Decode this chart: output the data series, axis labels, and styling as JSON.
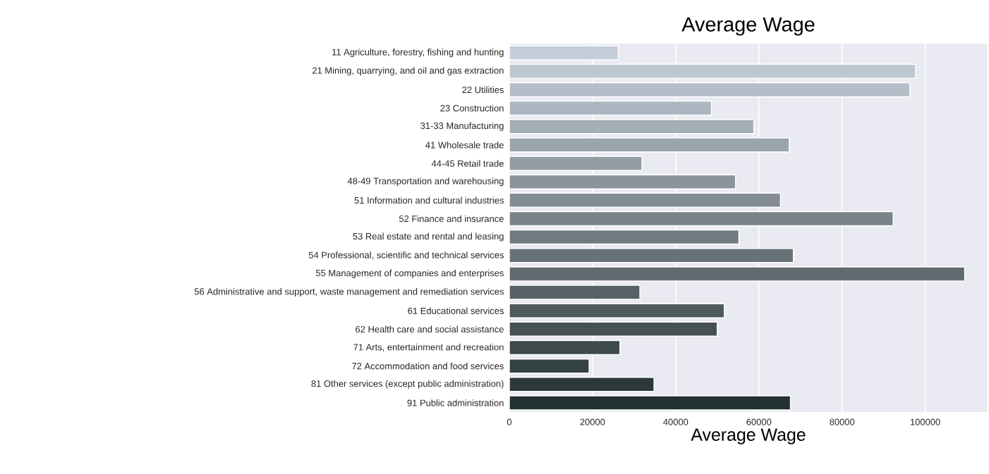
{
  "chart_data": {
    "type": "bar",
    "orientation": "horizontal",
    "title": "Average Wage",
    "xlabel": "Average Wage",
    "categories": [
      "11 Agriculture, forestry, fishing and hunting",
      "21 Mining, quarrying, and oil and gas extraction",
      "22 Utilities",
      "23 Construction",
      "31-33 Manufacturing",
      "41 Wholesale trade",
      "44-45 Retail trade",
      "48-49 Transportation and warehousing",
      "51 Information and cultural industries",
      "52 Finance and insurance",
      "53 Real estate and rental and leasing",
      "54 Professional, scientific and technical services",
      "55 Management of companies and enterprises",
      "56 Administrative and support, waste management and remediation services",
      "61 Educational services",
      "62 Health care and social assistance",
      "71 Arts, entertainment and recreation",
      "72 Accommodation and food services",
      "81 Other services (except public administration)",
      "91 Public administration"
    ],
    "values": [
      26200,
      97700,
      96300,
      48600,
      58800,
      67300,
      31900,
      54400,
      65200,
      92300,
      55200,
      68300,
      109500,
      31400,
      51700,
      50000,
      26600,
      19200,
      34800,
      67600
    ],
    "colors": [
      "#c5cfdb",
      "#bcc7d2",
      "#b4bec9",
      "#abb6c0",
      "#a3aeb7",
      "#9aa5ae",
      "#929da5",
      "#89949c",
      "#818c93",
      "#78848a",
      "#707b81",
      "#677378",
      "#5f6b6f",
      "#566266",
      "#4e5a5d",
      "#455154",
      "#3d494b",
      "#344142",
      "#2c3839",
      "#233030"
    ],
    "xlim": [
      0,
      115000
    ],
    "xticks": [
      0,
      20000,
      40000,
      60000,
      80000,
      100000
    ],
    "grid": "x"
  }
}
